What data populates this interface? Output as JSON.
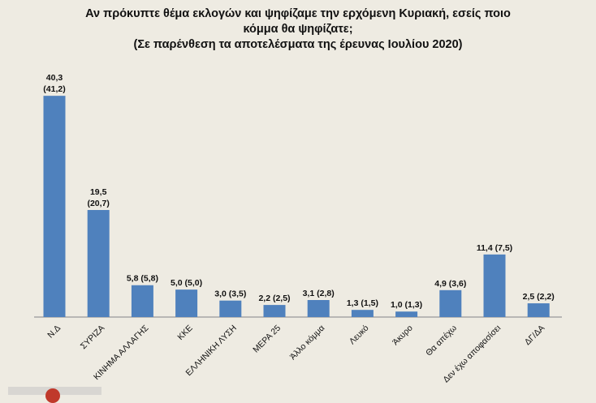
{
  "title": "Αν πρόκυπτε θέμα εκλογών και ψηφίζαμε την ερχόμενη Κυριακή, εσείς ποιο κόμμα θα ψηφίζατε;",
  "subtitle": "(Σε παρένθεση τα αποτελέσματα της έρευνας Ιουλίου 2020)",
  "chart_data": {
    "type": "bar",
    "title": "Αν πρόκυπτε θέμα εκλογών και ψηφίζαμε την ερχόμενη Κυριακή, εσείς ποιο κόμμα θα ψηφίζατε;",
    "subtitle": "(Σε παρένθεση τα αποτελέσματα της έρευνας Ιουλίου 2020)",
    "categories": [
      "Ν.Δ",
      "ΣΥΡΙΖΑ",
      "ΚΙΝΗΜΑ ΑΛΛΑΓΗΣ",
      "ΚΚΕ",
      "ΕΛΛΗΝΙΚΗ ΛΥΣΗ",
      "ΜΕΡΑ 25",
      "Άλλο κόμμα",
      "Λευκό",
      "Άκυρο",
      "Θα απέχω",
      "Δεν έχω αποφασίσει",
      "ΔΓ/ΔΑ"
    ],
    "values": [
      40.3,
      19.5,
      5.8,
      5.0,
      3.0,
      2.2,
      3.1,
      1.3,
      1.0,
      4.9,
      11.4,
      2.5
    ],
    "previous_values": [
      41.2,
      20.7,
      5.8,
      5.0,
      3.5,
      2.5,
      2.8,
      1.5,
      1.3,
      3.6,
      7.5,
      2.2
    ],
    "data_labels": [
      "40,3 (41,2)",
      "19,5 (20,7)",
      "5,8 (5,8)",
      "5,0 (5,0)",
      "3,0 (3,5)",
      "2,2 (2,5)",
      "3,1 (2,8)",
      "1,3 (1,5)",
      "1,0 (1,3)",
      "4,9 (3,6)",
      "11,4 (7,5)",
      "2,5 (2,2)"
    ],
    "ylim": [
      0,
      42
    ],
    "grid": false,
    "legend": "none",
    "bar_color": "#4f81bd",
    "axis_color": "#a6a6a6"
  }
}
